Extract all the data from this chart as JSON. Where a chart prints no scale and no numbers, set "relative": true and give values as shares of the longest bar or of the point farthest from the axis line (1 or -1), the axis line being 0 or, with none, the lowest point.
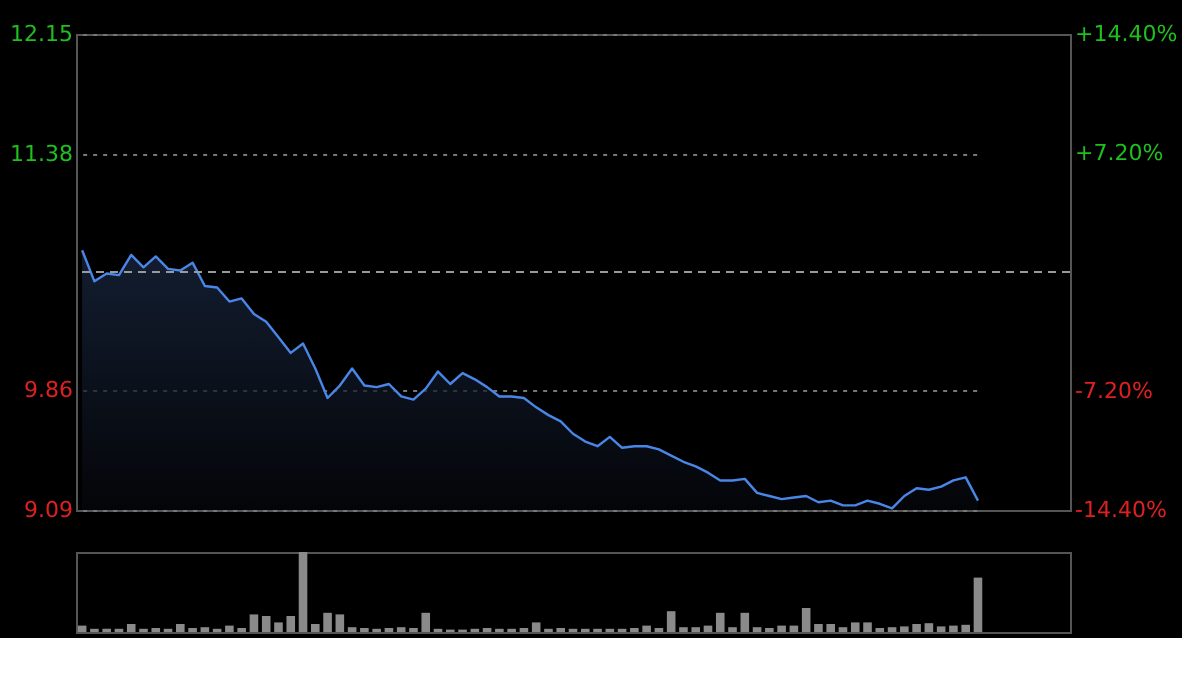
{
  "chart_data": [
    {
      "type": "area",
      "categories": [
        null,
        null,
        null,
        null,
        null,
        null,
        null,
        null,
        null,
        null,
        null,
        null,
        null,
        null,
        null,
        null,
        null,
        null,
        null,
        null,
        null,
        null,
        null,
        null,
        null,
        null,
        null,
        null,
        null,
        null,
        null,
        null,
        null,
        null,
        null,
        null,
        null,
        null,
        null,
        null,
        null,
        null,
        null,
        null,
        null,
        null,
        null,
        null,
        null,
        null,
        null,
        null,
        null,
        null,
        null,
        null,
        null,
        null,
        null,
        null,
        null,
        null,
        null,
        null,
        null,
        null,
        null,
        null,
        null,
        null,
        null,
        null,
        null,
        null
      ],
      "ylim": [
        9.09,
        12.15
      ],
      "yticks": [
        9.09,
        9.86,
        11.38,
        12.15
      ],
      "y2lim": [
        -14.4,
        14.4
      ],
      "y2ticks": [
        {
          "value": -14.4,
          "label": "-14.40%"
        },
        {
          "value": -7.2,
          "label": "-7.20%"
        },
        {
          "value": 7.2,
          "label": "+7.20%"
        },
        {
          "value": 14.4,
          "label": "+14.40%"
        }
      ],
      "ref_lines": [
        {
          "axis": "y",
          "value": 10.62,
          "line_style": "dashed",
          "color": "#9a9a9a"
        }
      ],
      "grid": "y",
      "tick_labels": "y",
      "series": [
        {
          "color": "#4a86e8",
          "values": [
            10.76,
            10.56,
            10.61,
            10.6,
            10.73,
            10.65,
            10.72,
            10.64,
            10.63,
            10.68,
            10.53,
            10.52,
            10.43,
            10.45,
            10.35,
            10.3,
            10.2,
            10.1,
            10.16,
            10.0,
            9.81,
            9.89,
            10.0,
            9.89,
            9.88,
            9.9,
            9.82,
            9.8,
            9.87,
            9.98,
            9.9,
            9.97,
            9.93,
            9.88,
            9.82,
            9.82,
            9.81,
            9.75,
            9.7,
            9.66,
            9.58,
            9.53,
            9.5,
            9.56,
            9.49,
            9.5,
            9.5,
            9.48,
            9.44,
            9.4,
            9.37,
            9.33,
            9.28,
            9.28,
            9.29,
            9.2,
            9.18,
            9.16,
            9.17,
            9.18,
            9.14,
            9.15,
            9.12,
            9.12,
            9.15,
            9.13,
            9.1,
            9.18,
            9.23,
            9.22,
            9.24,
            9.28,
            9.3,
            9.15
          ]
        }
      ]
    },
    {
      "type": "bar",
      "relative": true,
      "tick_labels": false,
      "categories": [
        null,
        null,
        null,
        null,
        null,
        null,
        null,
        null,
        null,
        null,
        null,
        null,
        null,
        null,
        null,
        null,
        null,
        null,
        null,
        null,
        null,
        null,
        null,
        null,
        null,
        null,
        null,
        null,
        null,
        null,
        null,
        null,
        null,
        null,
        null,
        null,
        null,
        null,
        null,
        null,
        null,
        null,
        null,
        null,
        null,
        null,
        null,
        null,
        null,
        null,
        null,
        null,
        null,
        null,
        null,
        null,
        null,
        null,
        null,
        null,
        null,
        null,
        null,
        null,
        null,
        null,
        null,
        null,
        null,
        null,
        null,
        null,
        null,
        null
      ],
      "values": [
        0.08,
        0.04,
        0.04,
        0.04,
        0.1,
        0.04,
        0.05,
        0.04,
        0.1,
        0.05,
        0.06,
        0.04,
        0.08,
        0.05,
        0.22,
        0.2,
        0.12,
        0.2,
        1,
        0.1,
        0.24,
        0.22,
        0.06,
        0.05,
        0.04,
        0.05,
        0.06,
        0.05,
        0.24,
        0.04,
        0.03,
        0.03,
        0.04,
        0.05,
        0.04,
        0.04,
        0.05,
        0.12,
        0.04,
        0.05,
        0.04,
        0.04,
        0.04,
        0.04,
        0.04,
        0.05,
        0.08,
        0.05,
        0.26,
        0.06,
        0.06,
        0.08,
        0.24,
        0.06,
        0.24,
        0.06,
        0.05,
        0.08,
        0.08,
        0.3,
        0.1,
        0.1,
        0.06,
        0.12,
        0.12,
        0.05,
        0.06,
        0.07,
        0.1,
        0.11,
        0.07,
        0.08,
        0.09,
        0.68
      ],
      "color": "#8a8a8a"
    }
  ]
}
